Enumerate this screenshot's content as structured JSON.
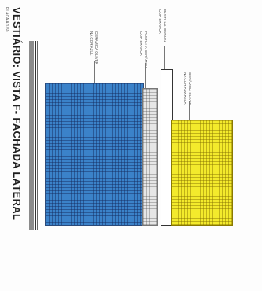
{
  "drawing": {
    "title": "VESTIÁRIO: VISTA F- FACHADA LATERAL",
    "scale": "PLACA A 1/50"
  },
  "labels": {
    "blue_wall": [
      "CERÂMICA OLIVER",
      "NA COR AZUL"
    ],
    "gray_strip": [
      "PASTILHA CERÂMICA",
      "COR BRANCA"
    ],
    "white_pillar": [
      "PASTILHA PINTADA",
      "COR BRANCA"
    ],
    "yellow_wall": [
      "CERÂMICA OLIVER",
      "NA COR AMARELA"
    ]
  },
  "colors": {
    "blue": "#3b82c9",
    "gray": "#e6e6e6",
    "white": "#ffffff",
    "yellow": "#f3ea2c"
  }
}
